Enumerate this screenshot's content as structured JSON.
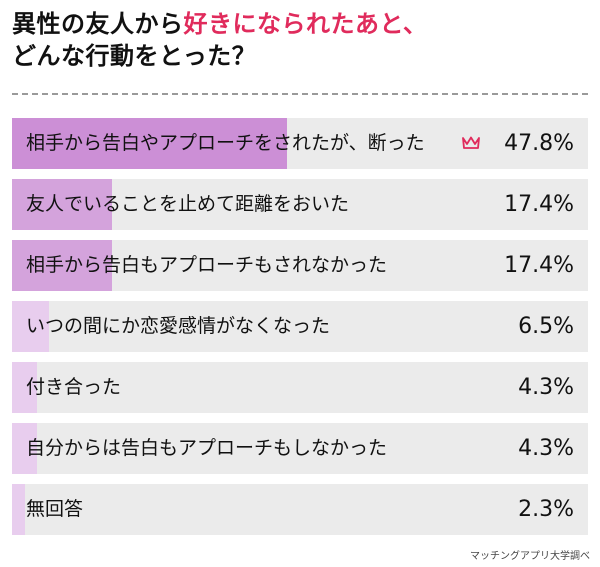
{
  "header": {
    "line1_prefix": "異性の友人から",
    "line1_highlight": "好きになられたあと、",
    "line2": "どんな行動をとった？"
  },
  "colors": {
    "highlight": "#e02b5c",
    "bar_top": "#cc8fd6",
    "bar_mid": "#d4a3dc",
    "bar_low": "#e8cdee",
    "track": "#ebebeb"
  },
  "chart_data": {
    "type": "bar",
    "orientation": "horizontal",
    "unit": "%",
    "xlim": [
      0,
      100
    ],
    "categories": [
      "相手から告白やアプローチをされたが、断った",
      "友人でいることを止めて距離をおいた",
      "相手から告白もアプローチもされなかった",
      "いつの間にか恋愛感情がなくなった",
      "付き合った",
      "自分からは告白もアプローチもしなかった",
      "無回答"
    ],
    "values": [
      47.8,
      17.4,
      17.4,
      6.5,
      4.3,
      4.3,
      2.3
    ],
    "value_labels": [
      "47.8%",
      "17.4%",
      "17.4%",
      "6.5%",
      "4.3%",
      "4.3%",
      "2.3%"
    ],
    "top_marker_icon": "crown-icon"
  },
  "source": "マッチングアプリ大学調べ"
}
